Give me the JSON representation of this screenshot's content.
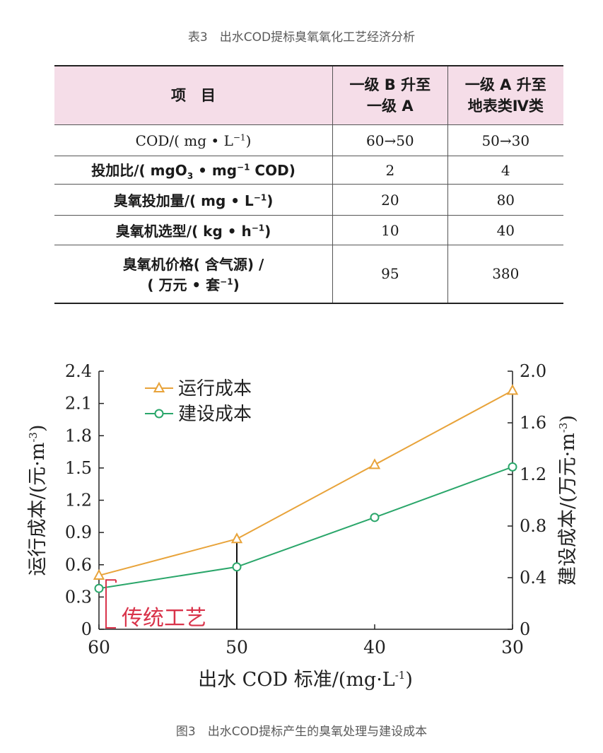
{
  "table": {
    "caption": "表3　出水COD提标臭氧氧化工艺经济分析",
    "header": {
      "item": "项　目",
      "col2": [
        "一级 B 升至",
        "一级 A"
      ],
      "col3": [
        "一级 A 升至",
        "地表类Ⅳ类"
      ]
    },
    "rows": [
      {
        "label": [
          "COD/( mg • L",
          "−1",
          ")"
        ],
        "v1": "60→50",
        "v2": "50→30"
      },
      {
        "label": [
          "投加比/( mgO",
          "3",
          " • mg",
          "−1",
          " COD)"
        ],
        "v1": "2",
        "v2": "4"
      },
      {
        "label": [
          "臭氧投加量/( mg • L",
          "−1",
          ")"
        ],
        "v1": "20",
        "v2": "80"
      },
      {
        "label": [
          "臭氧机选型/( kg • h",
          "−1",
          ")"
        ],
        "v1": "10",
        "v2": "40"
      },
      {
        "label": [
          "臭氧机价格( 含气源) /",
          "( 万元 • 套",
          "−1",
          ")"
        ],
        "v1": "95",
        "v2": "380"
      }
    ]
  },
  "chart_data": {
    "type": "line",
    "x": [
      60,
      50,
      40,
      30
    ],
    "x_tick_labels": [
      "60",
      "50",
      "40",
      "30"
    ],
    "xlabel": [
      "出水 COD 标准/(mg·L",
      "-1",
      ")"
    ],
    "ylabel_left": [
      "运行成本/(元·m",
      "-3",
      ")"
    ],
    "ylabel_right": [
      "建设成本/(万元·m",
      "-3",
      ")"
    ],
    "ylim_left": [
      0,
      2.4
    ],
    "ylim_right": [
      0,
      2.0
    ],
    "yticks_left": [
      "0",
      "0.3",
      "0.6",
      "0.9",
      "1.2",
      "1.5",
      "1.8",
      "2.1",
      "2.4"
    ],
    "yticks_right": [
      "0",
      "0.4",
      "0.8",
      "1.2",
      "1.6",
      "2.0"
    ],
    "series": [
      {
        "name": "运行成本",
        "axis": "left",
        "marker": "triangle",
        "color": "#e8a33a",
        "values": [
          0.5,
          0.84,
          1.53,
          2.22
        ]
      },
      {
        "name": "建设成本",
        "axis": "left",
        "marker": "circle",
        "color": "#2aa66a",
        "values": [
          0.38,
          0.58,
          1.04,
          1.51
        ]
      }
    ],
    "legend_position": "top-left",
    "annotation": {
      "text": "传统工艺",
      "color": "#d9334a"
    },
    "grid": false
  },
  "figure_caption": "图3　出水COD提标产生的臭氧处理与建设成本"
}
